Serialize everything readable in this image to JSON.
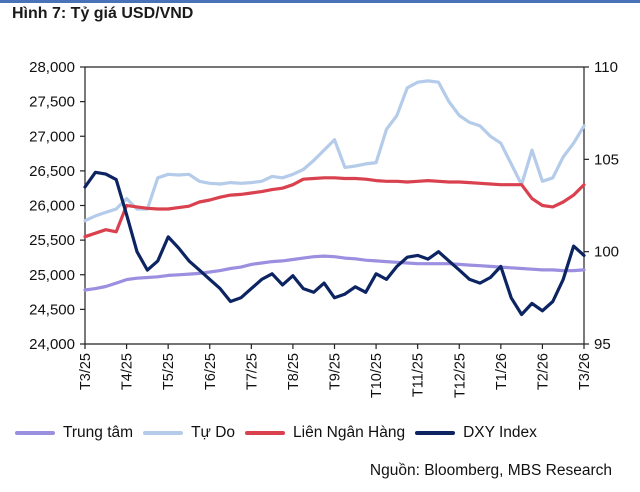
{
  "title": "Hình 7: Tỷ giá USD/VND",
  "source": "Nguồn: Bloomberg, MBS Research",
  "chart_data": {
    "type": "line",
    "title": "Hình 7: Tỷ giá USD/VND",
    "xlabel": "",
    "ylabel": "",
    "x_step_months": 0.25,
    "x_range": [
      0,
      12
    ],
    "x_ticks": [
      "T3/25",
      "T4/25",
      "T5/25",
      "T6/25",
      "T7/25",
      "T8/25",
      "T9/25",
      "T10/25",
      "T11/25",
      "T12/25",
      "T1/26",
      "T2/26",
      "T3/26"
    ],
    "y_left": {
      "range": [
        24000,
        28000
      ],
      "ticks": [
        "24,000",
        "24,500",
        "25,000",
        "25,500",
        "26,000",
        "26,500",
        "27,000",
        "27,500",
        "28,000"
      ]
    },
    "y_right": {
      "range": [
        95,
        110
      ],
      "ticks": [
        "95",
        "100",
        "105",
        "110"
      ]
    },
    "grid": false,
    "legend_placement": "bottom",
    "series": [
      {
        "name": "Trung tâm",
        "axis": "left",
        "color": "#9b8fe0",
        "values": [
          24780,
          24800,
          24830,
          24880,
          24930,
          24950,
          24960,
          24970,
          24990,
          25000,
          25010,
          25020,
          25040,
          25060,
          25090,
          25110,
          25150,
          25170,
          25190,
          25200,
          25220,
          25240,
          25260,
          25270,
          25260,
          25240,
          25230,
          25210,
          25200,
          25190,
          25180,
          25170,
          25160,
          25160,
          25160,
          25160,
          25150,
          25140,
          25130,
          25120,
          25110,
          25100,
          25090,
          25080,
          25070,
          25070,
          25060,
          25060,
          25070
        ]
      },
      {
        "name": "Tự Do",
        "axis": "left",
        "color": "#b4cbea",
        "values": [
          25780,
          25850,
          25900,
          25950,
          26100,
          25950,
          25950,
          26400,
          26450,
          26440,
          26450,
          26350,
          26320,
          26310,
          26330,
          26320,
          26330,
          26350,
          26420,
          26400,
          26450,
          26520,
          26650,
          26800,
          26950,
          26550,
          26570,
          26600,
          26620,
          27100,
          27300,
          27700,
          27780,
          27800,
          27780,
          27500,
          27300,
          27200,
          27150,
          27000,
          26900,
          26600,
          26300,
          26800,
          26350,
          26400,
          26700,
          26900,
          27150
        ]
      },
      {
        "name": "Liên Ngân Hàng",
        "axis": "left",
        "color": "#d9414f",
        "values": [
          25550,
          25600,
          25650,
          25620,
          26000,
          25980,
          25960,
          25950,
          25950,
          25970,
          25990,
          26050,
          26080,
          26120,
          26150,
          26160,
          26180,
          26200,
          26230,
          26250,
          26300,
          26380,
          26390,
          26400,
          26400,
          26390,
          26390,
          26380,
          26360,
          26350,
          26350,
          26340,
          26350,
          26360,
          26350,
          26340,
          26340,
          26330,
          26320,
          26310,
          26300,
          26300,
          26300,
          26100,
          26000,
          25980,
          26050,
          26150,
          26300
        ]
      },
      {
        "name": "DXY Index",
        "axis": "right",
        "color": "#0d2462",
        "values": [
          103.5,
          104.3,
          104.2,
          103.9,
          102.0,
          100.0,
          99.0,
          99.5,
          100.8,
          100.2,
          99.5,
          99.0,
          98.5,
          98.0,
          97.3,
          97.5,
          98.0,
          98.5,
          98.8,
          98.2,
          98.7,
          98.0,
          97.8,
          98.3,
          97.5,
          97.7,
          98.1,
          97.8,
          98.8,
          98.5,
          99.2,
          99.7,
          99.8,
          99.6,
          100.0,
          99.5,
          99.0,
          98.5,
          98.3,
          98.6,
          99.2,
          97.5,
          96.6,
          97.2,
          96.8,
          97.3,
          98.5,
          100.3,
          99.8
        ]
      }
    ]
  }
}
